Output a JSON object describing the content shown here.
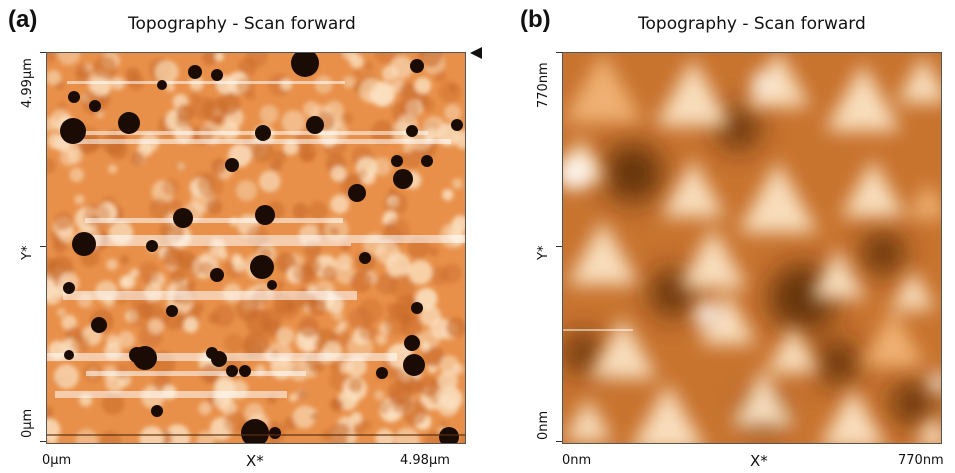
{
  "panels": [
    {
      "label": "(a)",
      "title": "Topography - Scan forward",
      "y_axis": {
        "name": "Y*",
        "min_label": "0µm",
        "max_label": "4.99µm"
      },
      "x_axis": {
        "name": "X*",
        "min_label": "0µm",
        "max_label": "4.98µm"
      },
      "colors": {
        "base": "#e8904a",
        "light": "#fbe0c0",
        "dark": "#1a0c04"
      }
    },
    {
      "label": "(b)",
      "title": "Topography - Scan forward",
      "y_axis": {
        "name": "Y*",
        "min_label": "0nm",
        "max_label": "770nm"
      },
      "x_axis": {
        "name": "X*",
        "min_label": "0nm",
        "max_label": "770nm"
      },
      "colors": {
        "base": "#e59a52",
        "light": "#fde6c8",
        "dark": "#4a2206"
      }
    }
  ]
}
